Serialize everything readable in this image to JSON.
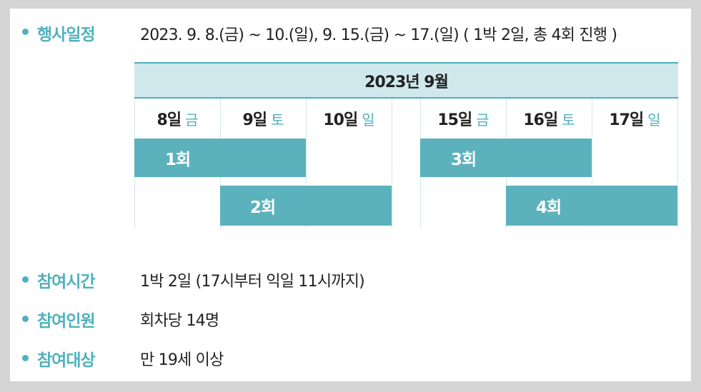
{
  "schedule": {
    "label": "행사일정",
    "value": "2023. 9. 8.(금) ~ 10.(일),   9. 15.(금) ~ 17.(일)  ( 1박 2일, 총 4회 진행 )"
  },
  "calendar": {
    "title": "2023년 9월",
    "days": [
      {
        "num": "8일",
        "weekday": "금"
      },
      {
        "num": "9일",
        "weekday": "토"
      },
      {
        "num": "10일",
        "weekday": "일"
      },
      {
        "num": "15일",
        "weekday": "금"
      },
      {
        "num": "16일",
        "weekday": "토"
      },
      {
        "num": "17일",
        "weekday": "일"
      }
    ],
    "sessions": [
      "1회",
      "2회",
      "3회",
      "4회"
    ],
    "colors": {
      "accent": "#4fb1bd",
      "bar": "#5bb2bd",
      "header_bg": "#cfe8ec"
    }
  },
  "time": {
    "label": "참여시간",
    "value": "1박 2일 (17시부터 익일 11시까지)"
  },
  "people": {
    "label": "참여인원",
    "value": "회차당 14명"
  },
  "target": {
    "label": "참여대상",
    "value": "만 19세 이상"
  }
}
